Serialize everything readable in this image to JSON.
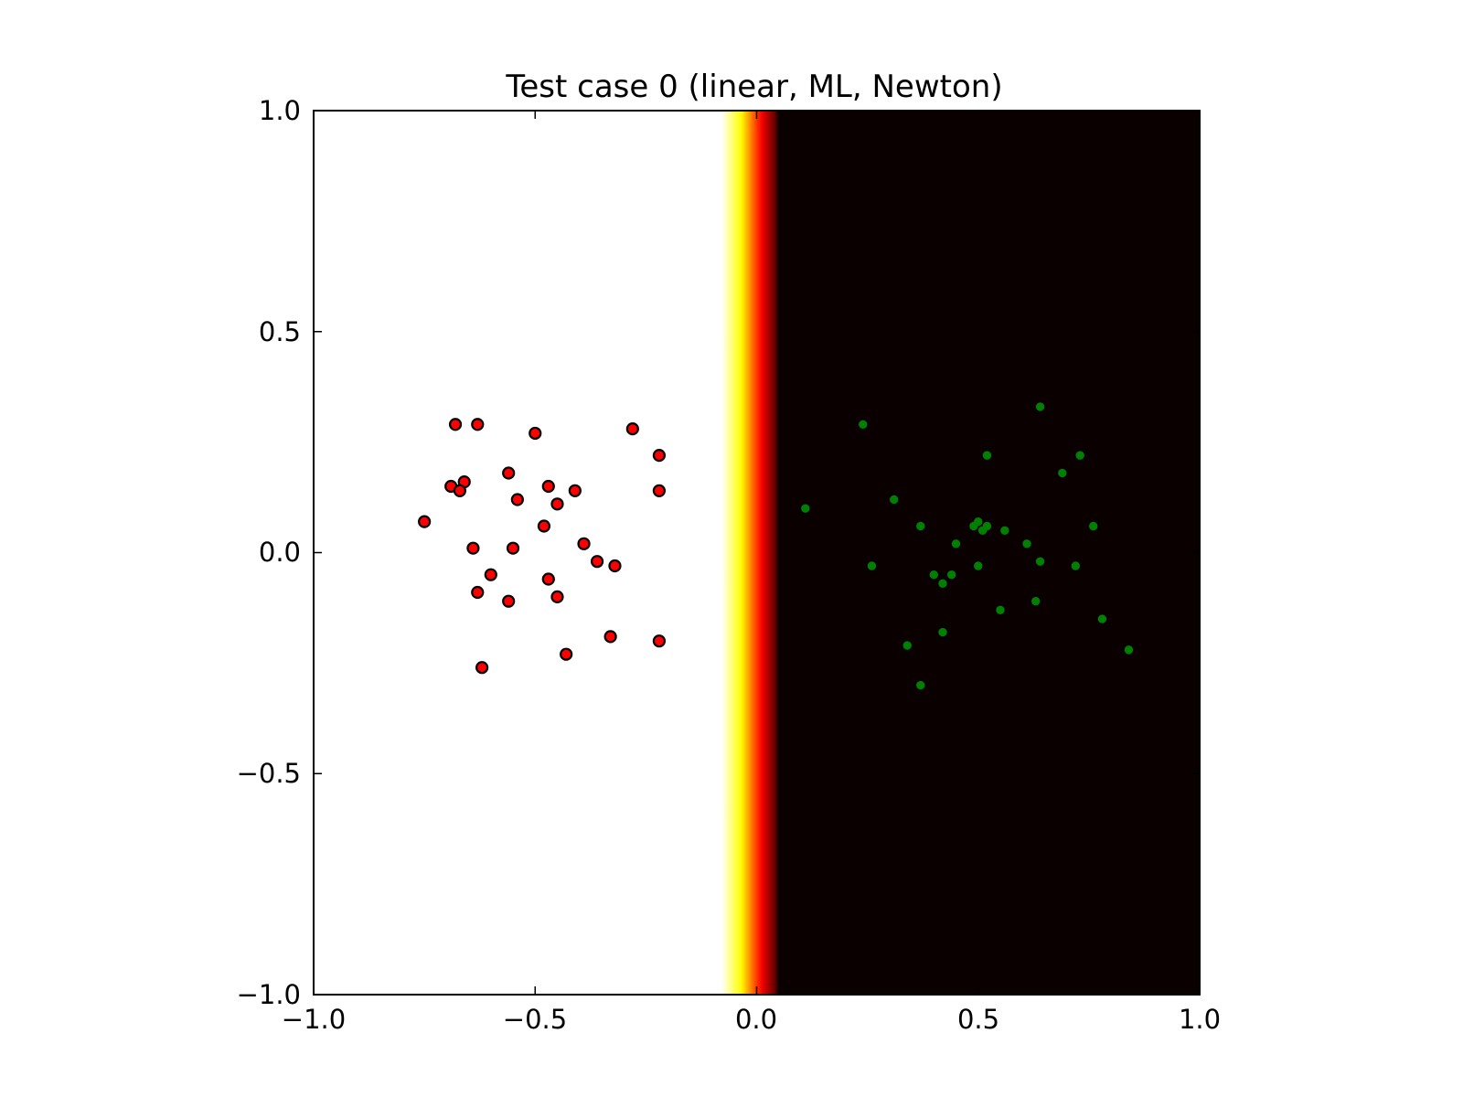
{
  "chart_data": {
    "type": "scatter",
    "title": "Test case 0 (linear, ML, Newton)",
    "xlabel": "",
    "ylabel": "",
    "xlim": [
      -1.0,
      1.0
    ],
    "ylim": [
      -1.0,
      1.0
    ],
    "x_ticks": [
      -1.0,
      -0.5,
      0.0,
      0.5,
      1.0
    ],
    "x_tick_labels": [
      "−1.0",
      "−0.5",
      "0.0",
      "0.5",
      "1.0"
    ],
    "y_ticks": [
      1.0,
      0.5,
      0.0,
      -0.5,
      -1.0
    ],
    "y_tick_labels": [
      "1.0",
      "0.5",
      "0.0",
      "−0.5",
      "−1.0"
    ],
    "grid": false,
    "background": {
      "type": "heatmap",
      "colormap": "hot",
      "varies_along": "x",
      "transition_x": [
        -0.08,
        0.05
      ],
      "high_side": "left",
      "colors": {
        "high": "#ffffff",
        "low": "#0b0000"
      }
    },
    "series": [
      {
        "color": "#ff0000",
        "edge": "#000000",
        "points": [
          [
            -0.68,
            0.29
          ],
          [
            -0.63,
            0.29
          ],
          [
            -0.5,
            0.27
          ],
          [
            -0.28,
            0.28
          ],
          [
            -0.22,
            0.22
          ],
          [
            -0.56,
            0.18
          ],
          [
            -0.69,
            0.15
          ],
          [
            -0.66,
            0.16
          ],
          [
            -0.67,
            0.14
          ],
          [
            -0.47,
            0.15
          ],
          [
            -0.41,
            0.14
          ],
          [
            -0.22,
            0.14
          ],
          [
            -0.54,
            0.12
          ],
          [
            -0.45,
            0.11
          ],
          [
            -0.75,
            0.07
          ],
          [
            -0.48,
            0.06
          ],
          [
            -0.39,
            0.02
          ],
          [
            -0.64,
            0.01
          ],
          [
            -0.55,
            0.01
          ],
          [
            -0.36,
            -0.02
          ],
          [
            -0.32,
            -0.03
          ],
          [
            -0.6,
            -0.05
          ],
          [
            -0.47,
            -0.06
          ],
          [
            -0.63,
            -0.09
          ],
          [
            -0.45,
            -0.1
          ],
          [
            -0.56,
            -0.11
          ],
          [
            -0.33,
            -0.19
          ],
          [
            -0.22,
            -0.2
          ],
          [
            -0.43,
            -0.23
          ],
          [
            -0.62,
            -0.26
          ]
        ]
      },
      {
        "color": "#008000",
        "edge": "#008000",
        "points": [
          [
            0.64,
            0.33
          ],
          [
            0.24,
            0.29
          ],
          [
            0.52,
            0.22
          ],
          [
            0.73,
            0.22
          ],
          [
            0.69,
            0.18
          ],
          [
            0.31,
            0.12
          ],
          [
            0.11,
            0.1
          ],
          [
            0.37,
            0.06
          ],
          [
            0.49,
            0.06
          ],
          [
            0.5,
            0.07
          ],
          [
            0.52,
            0.06
          ],
          [
            0.76,
            0.06
          ],
          [
            0.51,
            0.05
          ],
          [
            0.56,
            0.05
          ],
          [
            0.45,
            0.02
          ],
          [
            0.61,
            0.02
          ],
          [
            0.26,
            -0.03
          ],
          [
            0.5,
            -0.03
          ],
          [
            0.64,
            -0.02
          ],
          [
            0.72,
            -0.03
          ],
          [
            0.4,
            -0.05
          ],
          [
            0.44,
            -0.05
          ],
          [
            0.42,
            -0.07
          ],
          [
            0.63,
            -0.11
          ],
          [
            0.55,
            -0.13
          ],
          [
            0.78,
            -0.15
          ],
          [
            0.42,
            -0.18
          ],
          [
            0.34,
            -0.21
          ],
          [
            0.84,
            -0.22
          ],
          [
            0.37,
            -0.3
          ]
        ]
      }
    ]
  }
}
